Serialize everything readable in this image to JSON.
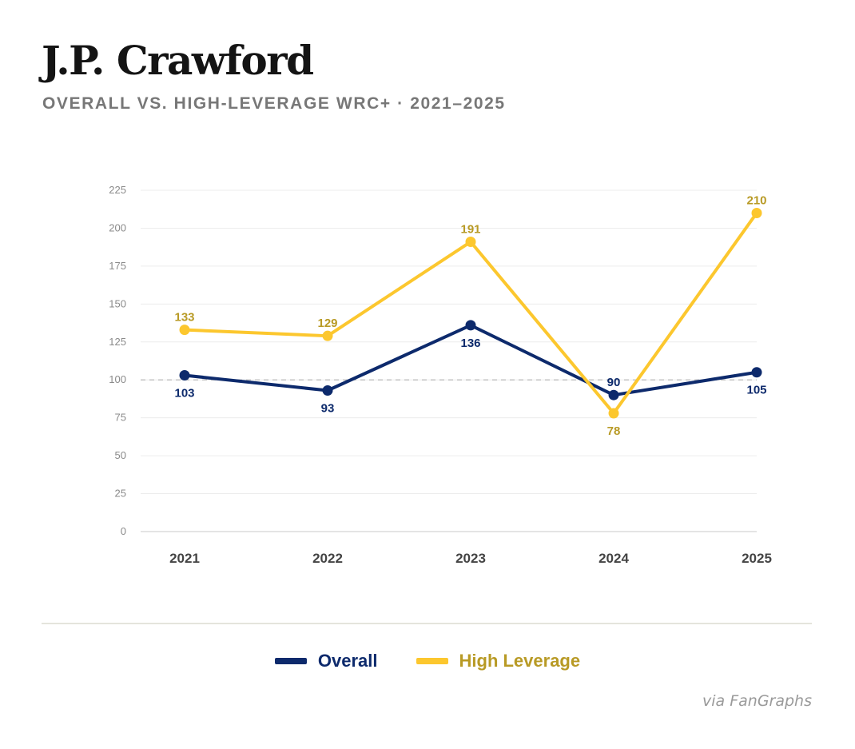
{
  "title": "J.P. Crawford",
  "subtitle": "OVERALL VS. HIGH-LEVERAGE WRC+ · 2021–2025",
  "source": "via FanGraphs",
  "colors": {
    "overall": "#0d2a6c",
    "high_leverage": "#fcc72e",
    "high_leverage_label": "#b89a25",
    "grid": "#ececec",
    "axis_text": "#8a8a8a",
    "x_text": "#444444",
    "reference": "#b8b8b8"
  },
  "legend": [
    {
      "label": "Overall",
      "key": "overall"
    },
    {
      "label": "High Leverage",
      "key": "high_leverage"
    }
  ],
  "chart_data": {
    "type": "line",
    "title": "J.P. Crawford",
    "subtitle": "OVERALL VS. HIGH-LEVERAGE WRC+ · 2021–2025",
    "xlabel": "",
    "ylabel": "",
    "categories": [
      "2021",
      "2022",
      "2023",
      "2024",
      "2025"
    ],
    "ylim": [
      0,
      225
    ],
    "yticks": [
      0,
      25,
      50,
      75,
      100,
      125,
      150,
      175,
      200,
      225
    ],
    "reference_line": 100,
    "grid": true,
    "legend_position": "bottom-center",
    "series": [
      {
        "name": "Overall",
        "key": "overall",
        "values": [
          103,
          93,
          136,
          90,
          105
        ],
        "labels": [
          "103",
          "93",
          "136",
          "90",
          "105"
        ]
      },
      {
        "name": "High Leverage",
        "key": "high_leverage",
        "values": [
          133,
          129,
          191,
          78,
          210
        ],
        "labels": [
          "133",
          "129",
          "191",
          "78",
          "210"
        ]
      }
    ]
  }
}
